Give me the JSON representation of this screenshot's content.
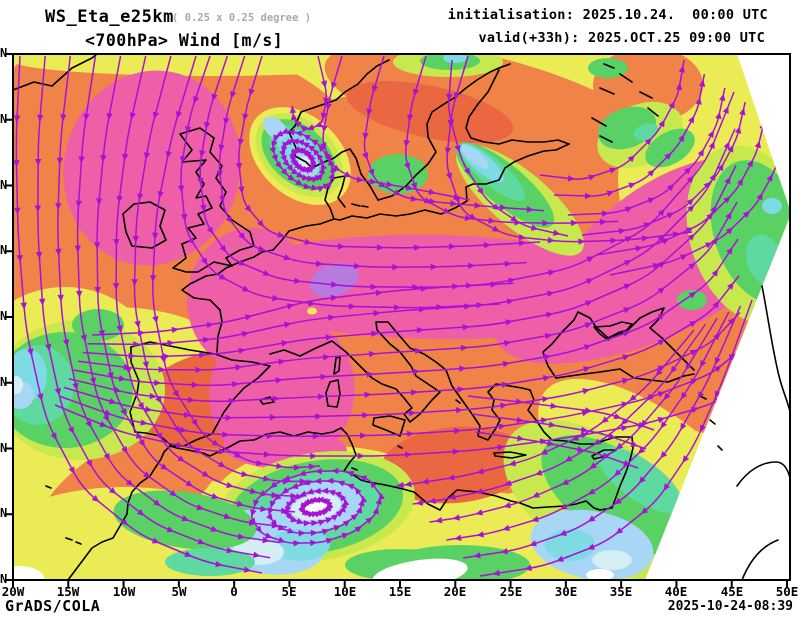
{
  "header": {
    "model": "WS_Eta_e25km",
    "resolution": "( 0.25 x 0.25 degree )",
    "field_line": "<700hPa> Wind [m/s]",
    "init_line": "initialisation: 2025.10.24.  00:00 UTC",
    "valid_line": "valid(+33h): 2025.OCT.25 09:00 UTC"
  },
  "axes": {
    "x_labels": [
      "20W",
      "15W",
      "10W",
      "5W",
      "0",
      "5E",
      "10E",
      "15E",
      "20E",
      "25E",
      "30E",
      "35E",
      "40E",
      "45E",
      "50E"
    ],
    "y_label_char": "N",
    "y_tick_count": 9
  },
  "map": {
    "kind": "streamline + wind-speed shading over Europe / North Africa / Mediterranean",
    "streamline_color": "#a712d4",
    "coastline_color": "#000000",
    "palette": {
      "white": "#ffffff",
      "pale_blue": "#d5eef4",
      "light_blue": "#a7d7f5",
      "cyan": "#7edbe3",
      "teal": "#5ed99f",
      "green": "#5ad164",
      "yellow_green": "#c8e94e",
      "yellow": "#ebeb55",
      "orange": "#f08448",
      "red_orange": "#eb6742",
      "pink": "#ee5fa7",
      "violet": "#b97ae0"
    }
  },
  "footer": {
    "credit": "GrADS/COLA",
    "timestamp": "2025-10-24-08:39"
  }
}
